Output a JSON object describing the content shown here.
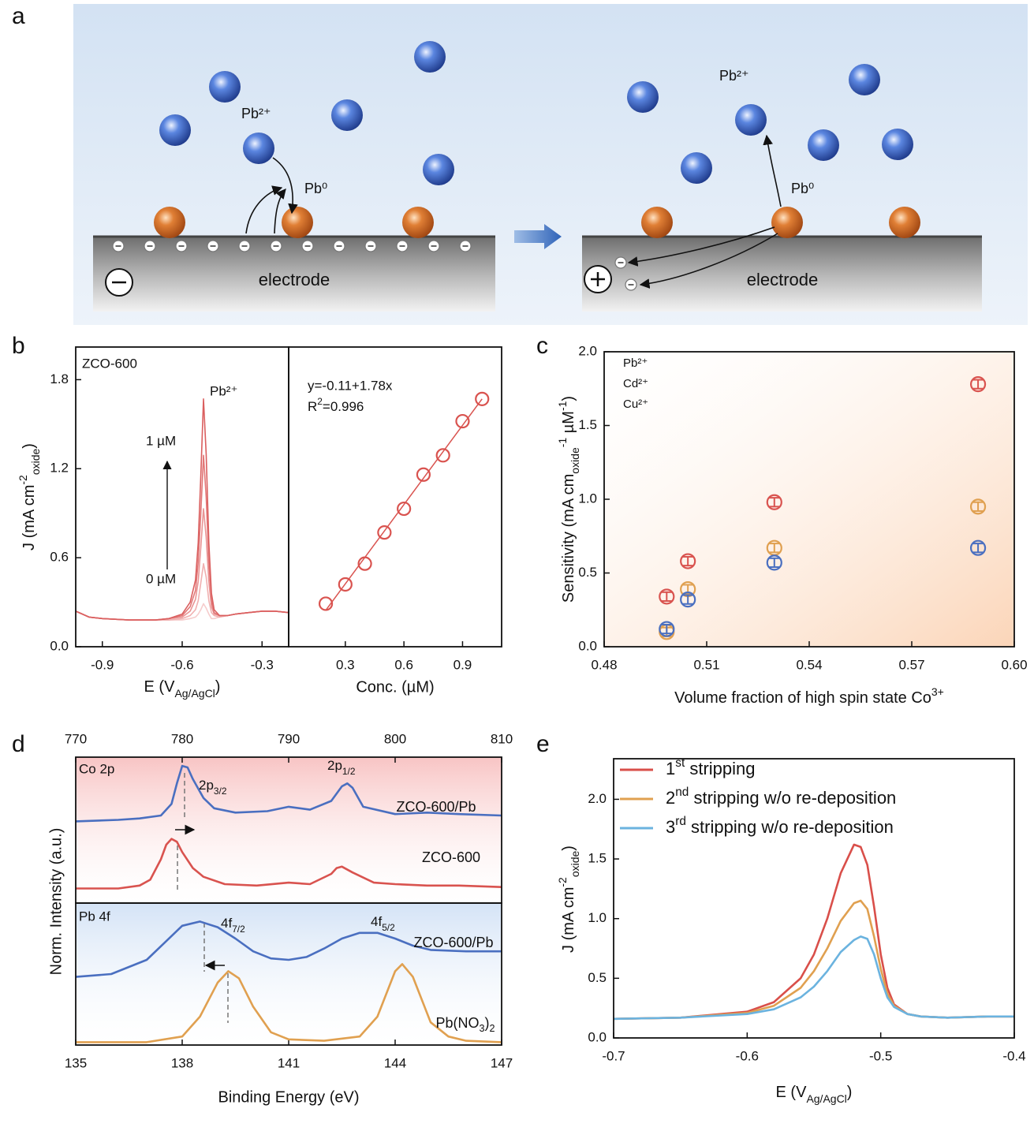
{
  "panel_labels": [
    "a",
    "b",
    "c",
    "d",
    "e"
  ],
  "diagram": {
    "left": {
      "ion": "Pb²⁺",
      "atom": "Pb⁰",
      "electrode": "electrode"
    },
    "right": {
      "ion": "Pb²⁺",
      "atom": "Pb⁰",
      "electrode": "electrode"
    }
  },
  "chart_data": [
    {
      "type": "line",
      "annotations": {
        "sample": "ZCO-600",
        "peak": "Pb²⁺",
        "high": "1 µM",
        "low": "0 µM"
      },
      "xlabel": [
        {
          "t": "E (V"
        },
        {
          "sub": "Ag/AgCl"
        },
        {
          "t": ")"
        }
      ],
      "ylabel": [
        {
          "t": "J (mA cm"
        },
        {
          "sup": "-2"
        },
        {
          "sub": "oxide"
        },
        {
          "t": ")"
        }
      ],
      "xlim": [
        -1.0,
        -0.2
      ],
      "xticks": [
        -0.9,
        -0.6,
        -0.3
      ],
      "ylim": [
        0,
        2.02
      ],
      "yticks": [
        {
          "value": 0,
          "label": "0.0"
        },
        0.6,
        1.2,
        1.8
      ],
      "x": [
        -1.0,
        -0.95,
        -0.9,
        -0.8,
        -0.7,
        -0.65,
        -0.6,
        -0.57,
        -0.55,
        -0.54,
        -0.53,
        -0.52,
        -0.51,
        -0.5,
        -0.49,
        -0.48,
        -0.46,
        -0.43,
        -0.4,
        -0.35,
        -0.3,
        -0.25,
        -0.2
      ],
      "series": [
        {
          "color": "#f6cccc",
          "values": [
            0.24,
            0.2,
            0.19,
            0.18,
            0.18,
            0.18,
            0.18,
            0.19,
            0.2,
            0.22,
            0.25,
            0.29,
            0.26,
            0.22,
            0.19,
            0.19,
            0.2,
            0.21,
            0.22,
            0.23,
            0.24,
            0.24,
            0.23
          ]
        },
        {
          "color": "#f0b0b0",
          "values": [
            0.24,
            0.2,
            0.19,
            0.18,
            0.18,
            0.18,
            0.19,
            0.21,
            0.25,
            0.31,
            0.43,
            0.56,
            0.47,
            0.31,
            0.23,
            0.21,
            0.2,
            0.21,
            0.22,
            0.23,
            0.24,
            0.24,
            0.23
          ]
        },
        {
          "color": "#e99494",
          "values": [
            0.24,
            0.2,
            0.19,
            0.18,
            0.18,
            0.19,
            0.2,
            0.24,
            0.32,
            0.44,
            0.67,
            0.93,
            0.74,
            0.44,
            0.27,
            0.22,
            0.21,
            0.21,
            0.22,
            0.23,
            0.24,
            0.24,
            0.23
          ]
        },
        {
          "color": "#e27878",
          "values": [
            0.24,
            0.2,
            0.19,
            0.18,
            0.18,
            0.19,
            0.21,
            0.27,
            0.38,
            0.57,
            0.9,
            1.29,
            1.01,
            0.57,
            0.31,
            0.23,
            0.21,
            0.21,
            0.22,
            0.23,
            0.24,
            0.24,
            0.23
          ]
        },
        {
          "color": "#da5f5f",
          "values": [
            0.24,
            0.2,
            0.19,
            0.18,
            0.18,
            0.19,
            0.22,
            0.3,
            0.45,
            0.7,
            1.15,
            1.67,
            1.3,
            0.7,
            0.36,
            0.25,
            0.21,
            0.21,
            0.22,
            0.23,
            0.24,
            0.24,
            0.23
          ]
        }
      ]
    },
    {
      "type": "scatter",
      "annotations": {
        "equation": "y=-0.11+1.78x",
        "r2": [
          {
            "t": "R"
          },
          {
            "sup": "2"
          },
          {
            "t": "=0.996"
          }
        ]
      },
      "xlabel": "Conc. (µM)",
      "xlim": [
        0.01,
        1.1
      ],
      "xticks": [
        0.3,
        0.6,
        0.9
      ],
      "ylim": [
        0,
        2.02
      ],
      "x": [
        0.2,
        0.3,
        0.4,
        0.5,
        0.6,
        0.7,
        0.8,
        0.9,
        1.0
      ],
      "values": [
        0.29,
        0.42,
        0.56,
        0.77,
        0.93,
        1.16,
        1.29,
        1.52,
        1.67
      ],
      "color": "#d9534f",
      "fit": {
        "x": [
          0.2,
          1.0
        ],
        "values": [
          0.246,
          1.67
        ]
      }
    },
    {
      "type": "scatter",
      "xlabel": [
        {
          "t": "Volume fraction of high spin state Co"
        },
        {
          "sup": "3+"
        }
      ],
      "ylabel": [
        {
          "t": "Sensitivity (mA cm"
        },
        {
          "sub": "oxide"
        },
        {
          "sup": "-1"
        },
        {
          "t": " µM"
        },
        {
          "sup": "-1"
        },
        {
          "t": ")"
        }
      ],
      "xlim": [
        0.48,
        0.6
      ],
      "xticks": [
        0.48,
        0.51,
        0.54,
        0.57,
        {
          "value": 0.6,
          "label": "0.60"
        }
      ],
      "ylim": [
        0,
        2.0
      ],
      "yticks": [
        {
          "value": 0,
          "label": "0.0"
        },
        0.5,
        {
          "value": 1,
          "label": "1.0"
        },
        1.5,
        {
          "value": 2,
          "label": "2.0"
        }
      ],
      "background": "#fbd5b8",
      "background_gradient": "to-bottom-right",
      "legend": "upper left",
      "x": [
        0.4983,
        0.5045,
        0.5298,
        0.5894
      ],
      "series": [
        {
          "name": "Pb²⁺",
          "color": "#d9534f",
          "values": [
            0.34,
            0.58,
            0.98,
            1.78
          ],
          "errors": [
            0.03,
            0.03,
            0.03,
            0.03
          ]
        },
        {
          "name": "Cd²⁺",
          "color": "#e0a050",
          "values": [
            0.1,
            0.39,
            0.67,
            0.95
          ],
          "errors": [
            0.03,
            0.03,
            0.03,
            0.03
          ]
        },
        {
          "name": "Cu²⁺",
          "color": "#4a6fc0",
          "values": [
            0.12,
            0.32,
            0.57,
            0.67
          ],
          "errors": [
            0.03,
            0.03,
            0.03,
            0.03
          ]
        }
      ]
    },
    {
      "type": "line",
      "annotations": {
        "panel": "Co 2p",
        "peak1": [
          {
            "t": "2p"
          },
          {
            "sub": "3/2"
          }
        ],
        "peak2": [
          {
            "t": "2p"
          },
          {
            "sub": "1/2"
          }
        ]
      },
      "xaxis_position": "top",
      "tick_color": "#d9534f",
      "xlim": [
        770,
        810
      ],
      "xticks": [
        770,
        780,
        790,
        800,
        810
      ],
      "ylim": [
        0,
        1
      ],
      "background": "#f8c4c4",
      "background_gradient": "to-bottom",
      "series": [
        {
          "name": "ZCO-600/Pb",
          "color": "#4a6fc0",
          "x": [
            770,
            774,
            776,
            778,
            779,
            779.5,
            780,
            780.5,
            781,
            782,
            783,
            785,
            788,
            790,
            792,
            794,
            795,
            795.5,
            796,
            797,
            800,
            803,
            806,
            810
          ],
          "values": [
            0.56,
            0.57,
            0.58,
            0.6,
            0.68,
            0.82,
            0.94,
            0.93,
            0.85,
            0.72,
            0.65,
            0.62,
            0.63,
            0.66,
            0.64,
            0.7,
            0.8,
            0.82,
            0.79,
            0.66,
            0.61,
            0.62,
            0.61,
            0.6
          ]
        },
        {
          "name": "ZCO-600",
          "color": "#d9534f",
          "x": [
            770,
            774,
            776,
            777,
            778,
            778.5,
            779,
            779.5,
            780,
            781,
            782,
            784,
            787,
            790,
            792,
            794,
            794.5,
            795,
            796,
            798,
            800,
            803,
            806,
            810
          ],
          "values": [
            0.1,
            0.1,
            0.12,
            0.16,
            0.3,
            0.4,
            0.44,
            0.42,
            0.35,
            0.24,
            0.18,
            0.13,
            0.12,
            0.14,
            0.13,
            0.2,
            0.24,
            0.25,
            0.21,
            0.14,
            0.13,
            0.12,
            0.12,
            0.11
          ]
        }
      ]
    },
    {
      "type": "line",
      "annotations": {
        "panel": "Pb 4f",
        "peak1": [
          {
            "t": "4f"
          },
          {
            "sub": "7/2"
          }
        ],
        "peak2": [
          {
            "t": "4f"
          },
          {
            "sub": "5/2"
          }
        ]
      },
      "xlabel": "Binding Energy (eV)",
      "ylabel": "Norm. Intensity (a.u.)",
      "tick_color": "#4a6fc0",
      "xlim": [
        135,
        147
      ],
      "xticks": [
        135,
        138,
        141,
        144,
        147
      ],
      "ylim": [
        0,
        1
      ],
      "background": "#d4e3f6",
      "background_gradient": "to-top",
      "series": [
        {
          "name": "ZCO-600/Pb",
          "color": "#4a6fc0",
          "x": [
            135,
            136,
            137,
            137.5,
            138,
            138.5,
            139,
            139.5,
            140,
            140.5,
            141,
            141.5,
            142,
            142.5,
            143,
            143.5,
            144,
            144.5,
            145,
            146,
            147
          ],
          "values": [
            0.48,
            0.5,
            0.6,
            0.72,
            0.84,
            0.87,
            0.83,
            0.75,
            0.66,
            0.61,
            0.6,
            0.62,
            0.68,
            0.75,
            0.79,
            0.79,
            0.75,
            0.7,
            0.67,
            0.66,
            0.66
          ]
        },
        {
          "name": [
            {
              "t": "Pb(NO"
            },
            {
              "sub": "3"
            },
            {
              "t": ")"
            },
            {
              "sub": "2"
            }
          ],
          "color": "#e0a050",
          "x": [
            135,
            137,
            138,
            138.5,
            139,
            139.3,
            139.6,
            140,
            140.5,
            141,
            142,
            143,
            143.5,
            144,
            144.2,
            144.5,
            145,
            145.5,
            146,
            147
          ],
          "values": [
            0.02,
            0.02,
            0.06,
            0.2,
            0.44,
            0.52,
            0.47,
            0.27,
            0.09,
            0.04,
            0.03,
            0.06,
            0.2,
            0.52,
            0.57,
            0.48,
            0.16,
            0.06,
            0.03,
            0.02
          ]
        }
      ]
    },
    {
      "type": "line",
      "xlabel": [
        {
          "t": "E (V"
        },
        {
          "sub": "Ag/AgCl"
        },
        {
          "t": ")"
        }
      ],
      "ylabel": [
        {
          "t": "J (mA cm"
        },
        {
          "sup": "-2"
        },
        {
          "sub": "oxide"
        },
        {
          "t": ")"
        }
      ],
      "xlim": [
        -0.7,
        -0.4
      ],
      "xticks": [
        -0.7,
        -0.6,
        -0.5,
        -0.4
      ],
      "ylim": [
        0,
        2.34
      ],
      "yticks": [
        {
          "value": 0,
          "label": "0.0"
        },
        0.5,
        {
          "value": 1,
          "label": "1.0"
        },
        1.5,
        {
          "value": 2,
          "label": "2.0"
        }
      ],
      "legend": "upper left",
      "x": [
        -0.7,
        -0.65,
        -0.6,
        -0.58,
        -0.56,
        -0.55,
        -0.54,
        -0.53,
        -0.52,
        -0.515,
        -0.51,
        -0.505,
        -0.5,
        -0.495,
        -0.49,
        -0.48,
        -0.47,
        -0.45,
        -0.42,
        -0.4
      ],
      "series": [
        {
          "name": [
            {
              "t": "1"
            },
            {
              "sup": "st"
            },
            {
              "t": " stripping"
            }
          ],
          "color": "#d94f4a",
          "values": [
            0.16,
            0.17,
            0.22,
            0.3,
            0.5,
            0.7,
            1.0,
            1.38,
            1.62,
            1.6,
            1.45,
            1.1,
            0.7,
            0.42,
            0.28,
            0.2,
            0.18,
            0.17,
            0.18,
            0.18
          ]
        },
        {
          "name": [
            {
              "t": "2"
            },
            {
              "sup": "nd"
            },
            {
              "t": " stripping w/o re-deposition"
            }
          ],
          "color": "#e0a050",
          "values": [
            0.16,
            0.17,
            0.21,
            0.27,
            0.42,
            0.56,
            0.75,
            0.98,
            1.13,
            1.15,
            1.08,
            0.85,
            0.58,
            0.37,
            0.27,
            0.2,
            0.18,
            0.17,
            0.18,
            0.18
          ]
        },
        {
          "name": [
            {
              "t": "3"
            },
            {
              "sup": "rd"
            },
            {
              "t": " stripping w/o re-deposition"
            }
          ],
          "color": "#6bb3df",
          "values": [
            0.16,
            0.17,
            0.2,
            0.24,
            0.34,
            0.43,
            0.56,
            0.72,
            0.82,
            0.85,
            0.83,
            0.7,
            0.5,
            0.34,
            0.26,
            0.2,
            0.18,
            0.17,
            0.18,
            0.18
          ]
        }
      ]
    }
  ]
}
